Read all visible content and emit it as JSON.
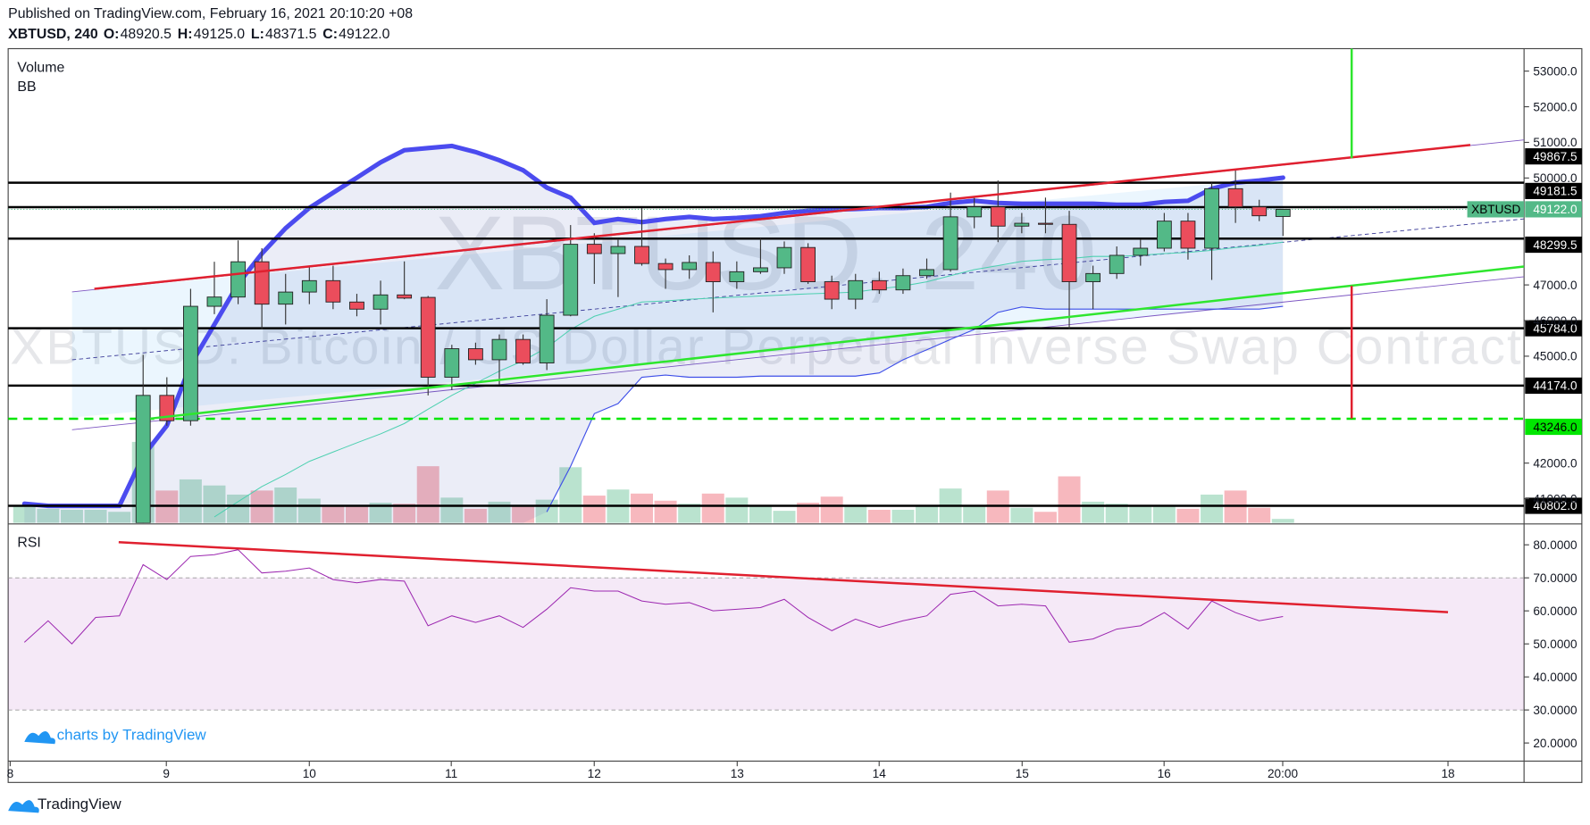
{
  "header": {
    "published": "Published on TradingView.com, February 16, 2021 20:10:20 +08",
    "symbol": "XBTUSD, 240",
    "ohlc": [
      {
        "label": "O:",
        "value": "48920.5"
      },
      {
        "label": "H:",
        "value": "49125.0"
      },
      {
        "label": "L:",
        "value": "48371.5"
      },
      {
        "label": "C:",
        "value": "49122.0"
      }
    ]
  },
  "watermark": {
    "symbol": "XBTUSD, 240",
    "description": "XBTUSD: Bitcoin / US Dollar Perpetual Inverse Swap Contract"
  },
  "footer": {
    "credit": "charts by TradingView",
    "brand": "TradingView"
  },
  "chart_data": {
    "type": "candlestick",
    "panels": [
      "Volume",
      "BB"
    ],
    "x_labels": [
      "8",
      "9",
      "10",
      "11",
      "12",
      "13",
      "14",
      "15",
      "16",
      "20:00",
      "18"
    ],
    "categories": [
      null,
      null,
      null,
      null,
      null,
      null,
      null,
      null,
      null,
      null,
      null,
      null,
      null,
      null,
      null,
      null,
      null,
      null,
      null,
      null,
      null,
      null,
      null,
      null,
      null,
      null,
      null,
      null,
      null,
      null,
      null,
      null,
      null,
      null,
      null,
      null,
      null,
      null,
      null,
      null,
      null,
      null,
      null,
      null,
      null,
      null,
      null,
      null,
      null,
      null,
      null,
      null,
      null,
      null
    ],
    "open": [
      null,
      null,
      null,
      null,
      null,
      40320,
      43900,
      43190,
      46400,
      46660,
      47650,
      46460,
      46800,
      47120,
      46520,
      46320,
      46720,
      46650,
      44410,
      45210,
      44900,
      45470,
      44810,
      46150,
      48140,
      47880,
      48080,
      47600,
      47430,
      47630,
      47090,
      47370,
      47480,
      48050,
      47090,
      46600,
      47120,
      46860,
      47260,
      47430,
      48910,
      49190,
      48650,
      48730,
      48700,
      47090,
      47320,
      47830,
      48030,
      48790,
      48030,
      49700,
      49190,
      48920.5
    ],
    "high": [
      null,
      null,
      null,
      null,
      null,
      45040,
      44410,
      46890,
      47650,
      48250,
      48030,
      47310,
      47540,
      47540,
      46750,
      47120,
      47660,
      46690,
      45320,
      45380,
      45610,
      45610,
      46600,
      48680,
      48450,
      48310,
      49160,
      47740,
      47830,
      47940,
      47660,
      48310,
      48220,
      48170,
      47260,
      47310,
      47370,
      47460,
      47740,
      49590,
      49450,
      49930,
      49020,
      49450,
      49080,
      47540,
      48080,
      48280,
      49020,
      49020,
      49870,
      50240,
      49390,
      49125
    ],
    "low": [
      null,
      null,
      null,
      null,
      null,
      40320,
      43050,
      43050,
      46180,
      46460,
      45750,
      45890,
      46460,
      46320,
      46120,
      45890,
      46600,
      43900,
      44050,
      44760,
      44190,
      44760,
      44610,
      46120,
      47030,
      46660,
      47540,
      46890,
      47170,
      46230,
      46890,
      47310,
      47310,
      47030,
      46320,
      46320,
      46750,
      46750,
      47170,
      47370,
      48590,
      48200,
      48450,
      48450,
      45750,
      46320,
      47170,
      47540,
      47940,
      47710,
      47140,
      48740,
      48790,
      48371.5
    ],
    "close": [
      null,
      null,
      null,
      null,
      null,
      43900,
      43190,
      46400,
      46660,
      47650,
      46460,
      46800,
      47120,
      46520,
      46320,
      46720,
      46630,
      44410,
      45210,
      44900,
      45470,
      44810,
      46150,
      48140,
      47880,
      48080,
      47600,
      47430,
      47630,
      47090,
      47370,
      47480,
      48050,
      47090,
      46600,
      47120,
      46860,
      47260,
      47430,
      48910,
      49190,
      48650,
      48730,
      48700,
      47090,
      47320,
      47830,
      48030,
      48790,
      48030,
      49700,
      49190,
      48940,
      49122
    ],
    "up_color": "#53b987",
    "down_color": "#eb4d5c",
    "volume": [
      16,
      14,
      13,
      13,
      11,
      80,
      32,
      43,
      37,
      28,
      32,
      35,
      24,
      17,
      16,
      20,
      19,
      56,
      25,
      14,
      21,
      16,
      23,
      55,
      27,
      33,
      29,
      22,
      19,
      29,
      25,
      16,
      12,
      20,
      26,
      17,
      13,
      13,
      17,
      34,
      16,
      32,
      15,
      11,
      46,
      21,
      19,
      16,
      16,
      14,
      28,
      32,
      15,
      4
    ],
    "bb_upper": [
      40860,
      40800,
      40800,
      40800,
      40800,
      42200,
      43050,
      44760,
      45890,
      47030,
      47880,
      48590,
      49160,
      49590,
      50010,
      50440,
      50780,
      50840,
      50900,
      50730,
      50500,
      50220,
      49730,
      49450,
      48740,
      48850,
      48760,
      48850,
      48910,
      48850,
      48880,
      48930,
      49020,
      49080,
      49110,
      49130,
      49160,
      49160,
      49190,
      49300,
      49360,
      49300,
      49280,
      49280,
      49280,
      49280,
      49250,
      49250,
      49330,
      49360,
      49700,
      49870,
      49930,
      50010
    ],
    "bb_basis": [
      null,
      null,
      null,
      null,
      null,
      null,
      null,
      null,
      40490,
      40920,
      41340,
      41680,
      42050,
      42310,
      42570,
      42820,
      43110,
      43510,
      43900,
      44240,
      44580,
      44870,
      45240,
      45750,
      46120,
      46320,
      46520,
      46550,
      46600,
      46630,
      46660,
      46690,
      46720,
      46750,
      46770,
      46800,
      46890,
      46970,
      47090,
      47260,
      47430,
      47540,
      47660,
      47710,
      47740,
      47800,
      47800,
      47830,
      47880,
      47910,
      47970,
      48050,
      48110,
      48200
    ],
    "bb_lower": [
      null,
      null,
      null,
      null,
      null,
      null,
      null,
      null,
      null,
      null,
      null,
      null,
      null,
      null,
      null,
      null,
      null,
      null,
      null,
      null,
      null,
      null,
      40630,
      41910,
      43390,
      43670,
      44410,
      44470,
      44410,
      44410,
      44410,
      44440,
      44440,
      44440,
      44440,
      44440,
      44530,
      44900,
      45180,
      45470,
      45750,
      46230,
      46380,
      46320,
      46320,
      46320,
      46320,
      46320,
      46320,
      46320,
      46320,
      46320,
      46320,
      46400
    ],
    "ylim": [
      40320,
      53630
    ],
    "yticks": [
      {
        "value": 53000,
        "label": "53000.0"
      },
      {
        "value": 52000,
        "label": "52000.0"
      },
      {
        "value": 51000,
        "label": "51000.0"
      },
      {
        "value": 50000,
        "label": "50000.0"
      },
      {
        "value": 47000,
        "label": "47000.0"
      },
      {
        "value": 46000,
        "label": "46000.0"
      },
      {
        "value": 45000,
        "label": "45000.0"
      },
      {
        "value": 42000,
        "label": "42000.0"
      },
      {
        "value": 41000,
        "label": "41000.0"
      }
    ],
    "levels": [
      {
        "value": 49867.5,
        "label": "49867.5",
        "color": "#000000",
        "dashed": false
      },
      {
        "value": 49181.5,
        "label": "49181.5",
        "color": "#000000",
        "dashed": false
      },
      {
        "value": 49122.0,
        "label": "49122.0",
        "color": "#53b987",
        "dashed": false
      },
      {
        "value": 48299.5,
        "label": "48299.5",
        "color": "#000000",
        "dashed": false
      },
      {
        "value": 45784.0,
        "label": "45784.0",
        "color": "#000000",
        "dashed": false
      },
      {
        "value": 44174.0,
        "label": "44174.0",
        "color": "#000000",
        "dashed": false
      },
      {
        "value": 43246.0,
        "label": "43246.0",
        "color": "#00e600",
        "dashed": true
      },
      {
        "value": 40802.0,
        "label": "40802.0",
        "color": "#000000",
        "dashed": false
      }
    ],
    "price_label": "XBTUSD",
    "rsi": {
      "name": "RSI",
      "color": "#9c27b0",
      "values": [
        50.5,
        57,
        50,
        58,
        58.5,
        74,
        69.5,
        76.5,
        77,
        78.5,
        71.5,
        72,
        73,
        69.5,
        68.5,
        69.5,
        69,
        55.5,
        58.5,
        56.5,
        58.5,
        55,
        60.5,
        67,
        66,
        66,
        63,
        62,
        62.5,
        60,
        60.5,
        61,
        63.5,
        58,
        54,
        57.5,
        55,
        57,
        58.5,
        65,
        66,
        61.5,
        62,
        61.5,
        50.5,
        51.5,
        54.5,
        55.5,
        59.5,
        54.5,
        63,
        59.5,
        57,
        58.3
      ],
      "ylim": [
        14.5,
        86
      ],
      "band": [
        30,
        70
      ],
      "yticks": [
        {
          "value": 80,
          "label": "80.0000"
        },
        {
          "value": 70,
          "label": "70.0000"
        },
        {
          "value": 60,
          "label": "60.0000"
        },
        {
          "value": 50,
          "label": "50.0000"
        },
        {
          "value": 40,
          "label": "40.0000"
        },
        {
          "value": 30,
          "label": "30.0000"
        },
        {
          "value": 20,
          "label": "20.0000"
        }
      ]
    }
  }
}
